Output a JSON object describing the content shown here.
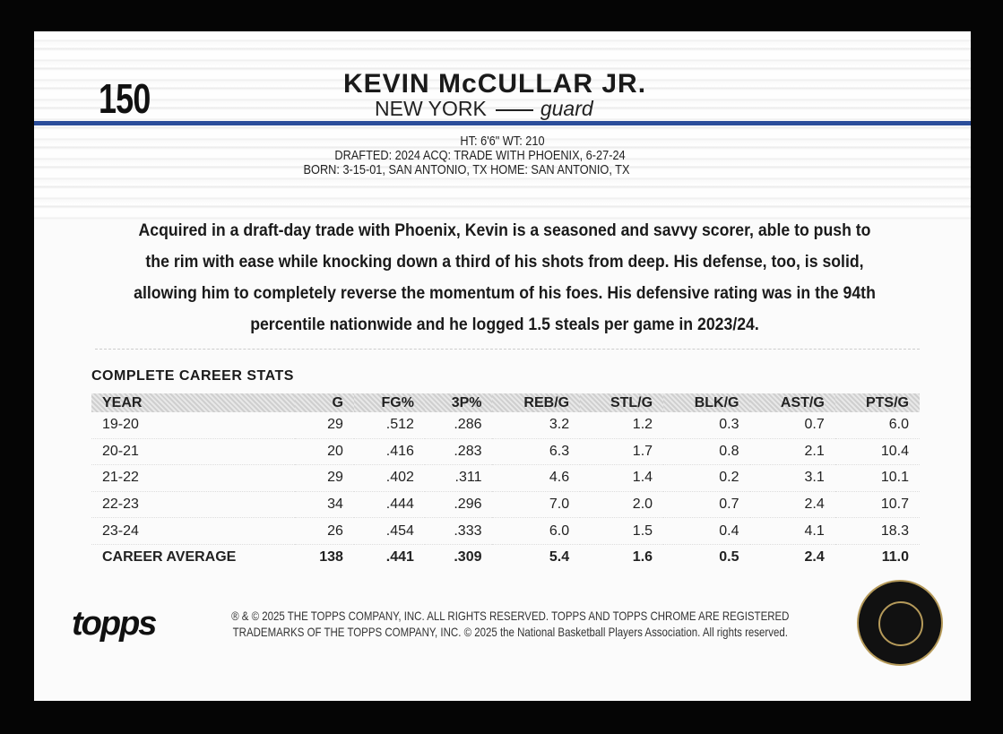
{
  "card": {
    "number": "150",
    "name": "KEVIN McCULLAR JR.",
    "team": "NEW YORK",
    "position": "guard",
    "bio": {
      "line1": "HT: 6'6\"     WT: 210",
      "line2": "DRAFTED: 2024     ACQ: TRADE WITH PHOENIX, 6-27-24",
      "line3": "BORN: 3-15-01, SAN ANTONIO, TX     HOME: SAN ANTONIO, TX"
    },
    "blurb": "Acquired in a draft-day trade with Phoenix, Kevin is a seasoned and savvy scorer, able to push to the rim with ease while knocking down a third of his shots from deep. His defense, too, is solid, allowing him to completely reverse the momentum of his foes. His defensive rating was in the 94th percentile nationwide and he logged 1.5 steals per game in 2023/24.",
    "accent_color": "#2a4d9a"
  },
  "stats": {
    "title": "COMPLETE CAREER STATS",
    "headers": [
      "YEAR",
      "G",
      "FG%",
      "3P%",
      "REB/G",
      "STL/G",
      "BLK/G",
      "AST/G",
      "PTS/G"
    ],
    "rows": [
      [
        "19-20",
        "29",
        ".512",
        ".286",
        "3.2",
        "1.2",
        "0.3",
        "0.7",
        "6.0"
      ],
      [
        "20-21",
        "20",
        ".416",
        ".283",
        "6.3",
        "1.7",
        "0.8",
        "2.1",
        "10.4"
      ],
      [
        "21-22",
        "29",
        ".402",
        ".311",
        "4.6",
        "1.4",
        "0.2",
        "3.1",
        "10.1"
      ],
      [
        "22-23",
        "34",
        ".444",
        ".296",
        "7.0",
        "2.0",
        "0.7",
        "2.4",
        "10.7"
      ],
      [
        "23-24",
        "26",
        ".454",
        ".333",
        "6.0",
        "1.5",
        "0.4",
        "4.1",
        "18.3"
      ],
      [
        "CAREER AVERAGE",
        "138",
        ".441",
        ".309",
        "5.4",
        "1.6",
        "0.5",
        "2.4",
        "11.0"
      ]
    ]
  },
  "footer": {
    "logo": "topps",
    "legal1": "® & © 2025 THE TOPPS COMPANY, INC. ALL RIGHTS RESERVED. TOPPS AND TOPPS CHROME ARE REGISTERED",
    "legal2": "TRADEMARKS OF THE TOPPS COMPANY, INC. © 2025 the National Basketball Players Association. All rights reserved.",
    "seal": "NATIONAL BASKETBALL PLAYERS ASSOCIATION"
  }
}
